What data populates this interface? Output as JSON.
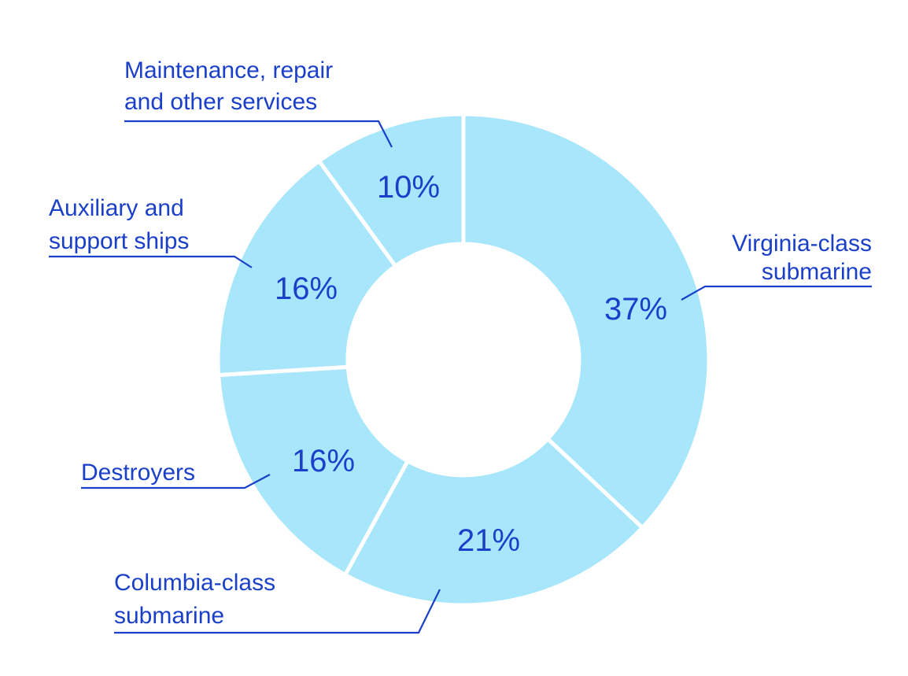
{
  "colors": {
    "slice_fill": "#a8e6fb",
    "text": "#1a3fc8",
    "background": "#ffffff"
  },
  "chart_data": {
    "type": "pie",
    "donut": true,
    "title": "",
    "slices": [
      {
        "label": "Virginia-class submarine",
        "label_lines": [
          "Virginia-class",
          "submarine"
        ],
        "value": 37,
        "display": "37%"
      },
      {
        "label": "Columbia-class submarine",
        "label_lines": [
          "Columbia-class",
          "submarine"
        ],
        "value": 21,
        "display": "21%"
      },
      {
        "label": "Destroyers",
        "label_lines": [
          "Destroyers"
        ],
        "value": 16,
        "display": "16%"
      },
      {
        "label": "Auxiliary and support ships",
        "label_lines": [
          "Auxiliary and",
          "support ships"
        ],
        "value": 16,
        "display": "16%"
      },
      {
        "label": "Maintenance, repair and other services",
        "label_lines": [
          "Maintenance, repair",
          "and other services"
        ],
        "value": 10,
        "display": "10%"
      }
    ]
  }
}
